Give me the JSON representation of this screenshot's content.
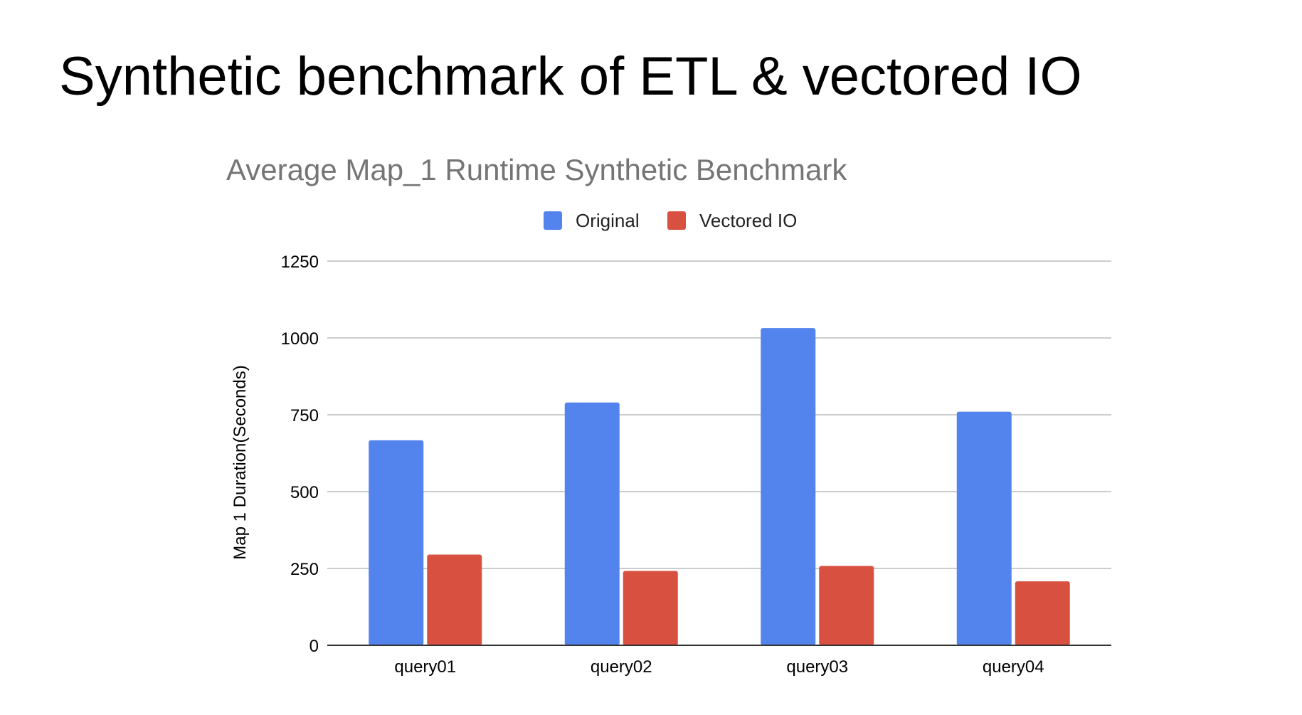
{
  "slide": {
    "title": "Synthetic benchmark of ETL & vectored IO"
  },
  "chart_data": {
    "type": "bar",
    "title": "Average Map_1 Runtime Synthetic Benchmark",
    "xlabel": "",
    "ylabel": "Map 1 Duration(Seconds)",
    "categories": [
      "query01",
      "query02",
      "query03",
      "query04"
    ],
    "series": [
      {
        "name": "Original",
        "color": "#5383EC",
        "values": [
          667,
          790,
          1032,
          760
        ]
      },
      {
        "name": "Vectored IO",
        "color": "#D85140",
        "values": [
          295,
          242,
          258,
          208
        ]
      }
    ],
    "ylim": [
      0,
      1250
    ],
    "yticks": [
      "0",
      "250",
      "500",
      "750",
      "1000",
      "1250"
    ],
    "grid": true,
    "legend": "top-center"
  }
}
